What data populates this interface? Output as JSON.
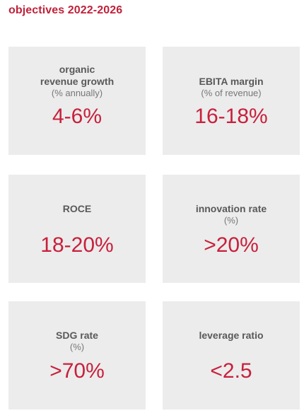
{
  "title": "objectives 2022-2026",
  "cards": [
    {
      "label": "organic\nrevenue growth",
      "sub": "(% annually)",
      "value": "4-6%"
    },
    {
      "label": "EBITA margin",
      "sub": "(% of revenue)",
      "value": "16-18%"
    },
    {
      "label": "ROCE",
      "sub": "",
      "value": "18-20%"
    },
    {
      "label": "innovation rate",
      "sub": "(%)",
      "value": ">20%"
    },
    {
      "label": "SDG rate",
      "sub": "(%)",
      "value": ">70%"
    },
    {
      "label": "leverage ratio",
      "sub": "",
      "value": "<2.5"
    }
  ],
  "colors": {
    "accent": "#c8203c",
    "card_bg": "#ececec",
    "label": "#595959"
  }
}
